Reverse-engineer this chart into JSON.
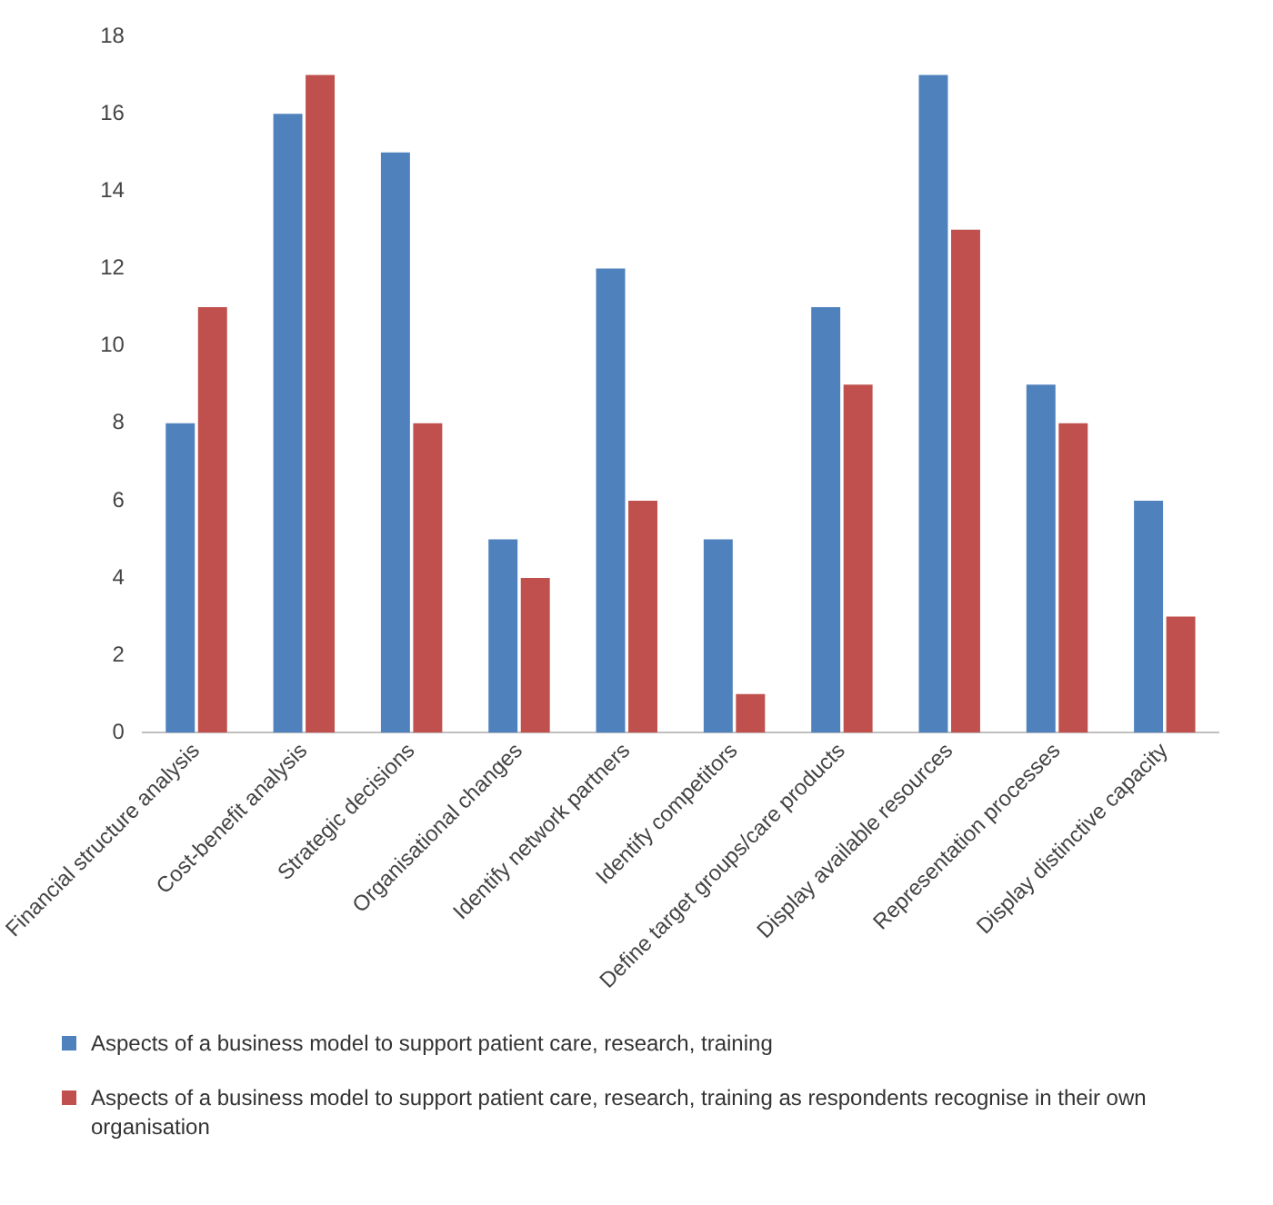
{
  "chart_data": {
    "type": "bar",
    "categories": [
      "Financial structure analysis",
      "Cost-benefit analysis",
      "Strategic decisions",
      "Organisational changes",
      "Identify network partners",
      "Identify competitors",
      "Define target groups/care products",
      "Display available resources",
      "Representation processes",
      "Display distinctive capacity"
    ],
    "series": [
      {
        "name": "Aspects of a business model to support patient care, research, training",
        "color": "#4f81bd",
        "values": [
          8,
          16,
          15,
          5,
          12,
          5,
          11,
          17,
          9,
          6
        ]
      },
      {
        "name": "Aspects of a business model to support patient care, research, training as respondents recognise in their own organisation",
        "color": "#c0504d",
        "values": [
          11,
          17,
          8,
          4,
          6,
          1,
          9,
          13,
          8,
          3
        ]
      }
    ],
    "ylim": [
      0,
      18
    ],
    "yticks": [
      0,
      2,
      4,
      6,
      8,
      10,
      12,
      14,
      16,
      18
    ],
    "grid": false,
    "legend": "bottom"
  }
}
